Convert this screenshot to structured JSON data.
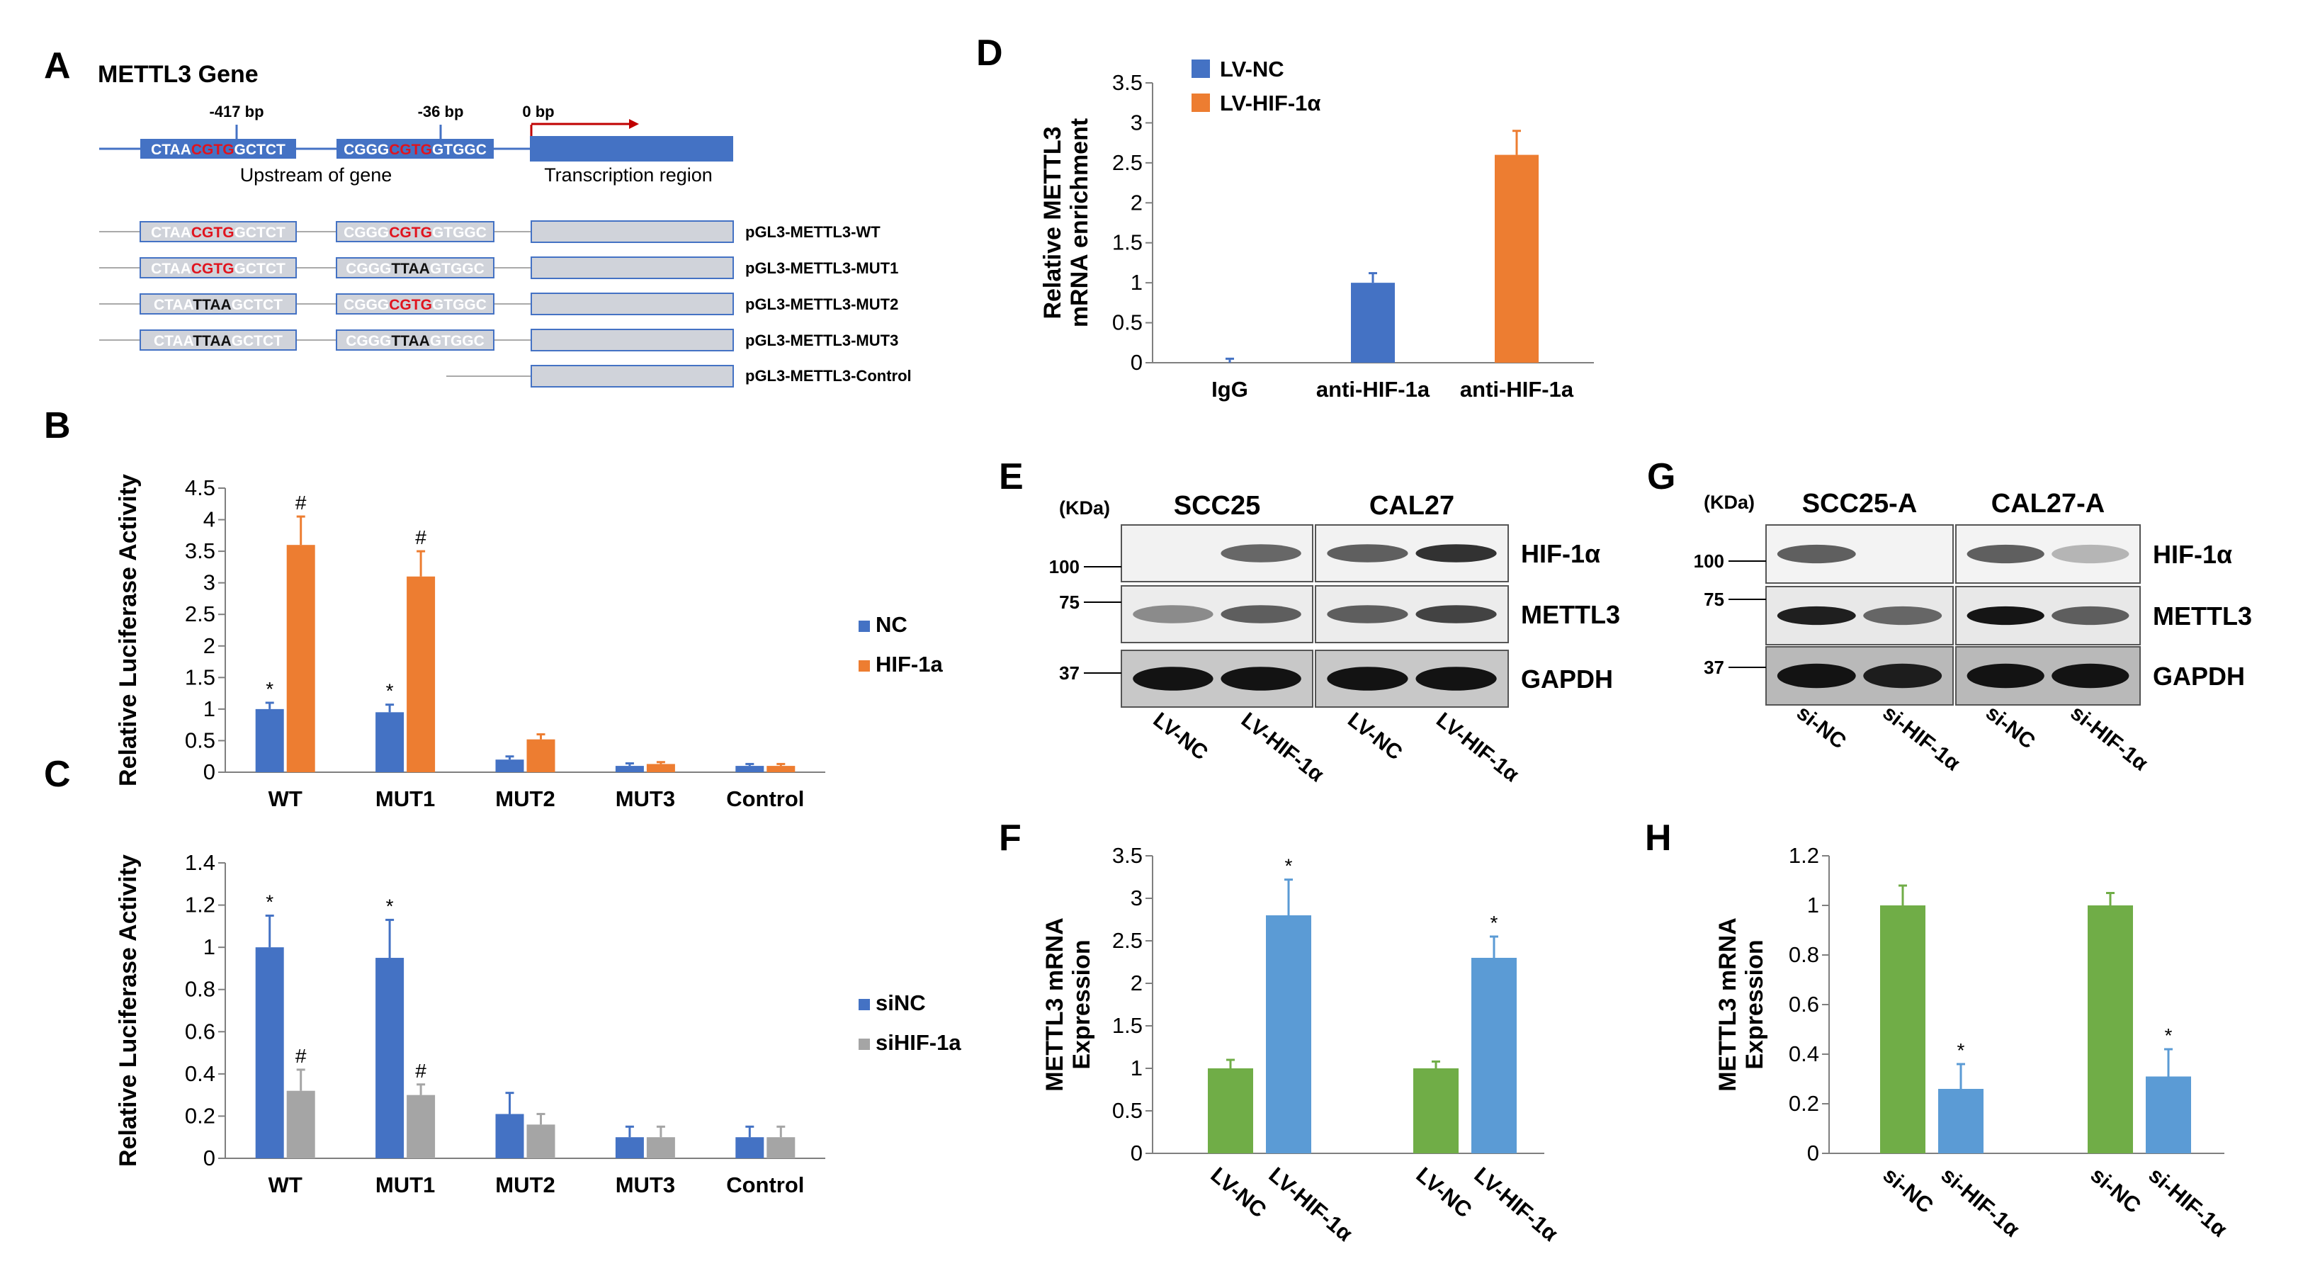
{
  "colors": {
    "blue": "#4472c4",
    "orange": "#ed7d31",
    "gray": "#a5a5a5",
    "green": "#70ad47",
    "lightblue": "#5b9bd5",
    "red": "#e0141e",
    "gene_box": "#4472c4",
    "construct_box": "#d0d3da"
  },
  "panelA": {
    "label": "A",
    "title": "METTL3 Gene",
    "bp_labels": [
      "-417 bp",
      "-36 bp",
      "0 bp"
    ],
    "site1": {
      "pre": "CTAA",
      "core": "CGTG",
      "post": "GCTCT"
    },
    "site2": {
      "pre": "CGGG",
      "core": "CGTG",
      "post": "GTGGC"
    },
    "upstream_label": "Upstream of gene",
    "transcription_label": "Transcription region",
    "constructs": [
      {
        "name": "pGL3-METTL3-WT",
        "s1": {
          "pre": "CTAA",
          "core": "CGTG",
          "post": "GCTCT",
          "mut": false
        },
        "s2": {
          "pre": "CGGG",
          "core": "CGTG",
          "post": "GTGGC",
          "mut": false
        }
      },
      {
        "name": "pGL3-METTL3-MUT1",
        "s1": {
          "pre": "CTAA",
          "core": "CGTG",
          "post": "GCTCT",
          "mut": false
        },
        "s2": {
          "pre": "CGGG",
          "core": "TTAA",
          "post": "GTGGC",
          "mut": true
        }
      },
      {
        "name": "pGL3-METTL3-MUT2",
        "s1": {
          "pre": "CTAA",
          "core": "TTAA",
          "post": "GCTCT",
          "mut": true
        },
        "s2": {
          "pre": "CGGG",
          "core": "CGTG",
          "post": "GTGGC",
          "mut": false
        }
      },
      {
        "name": "pGL3-METTL3-MUT3",
        "s1": {
          "pre": "CTAA",
          "core": "TTAA",
          "post": "GCTCT",
          "mut": true
        },
        "s2": {
          "pre": "CGGG",
          "core": "TTAA",
          "post": "GTGGC",
          "mut": true
        }
      }
    ],
    "control_name": "pGL3-METTL3-Control"
  },
  "chart_data": [
    {
      "id": "B",
      "type": "bar",
      "panel_label": "B",
      "categories": [
        "WT",
        "MUT1",
        "MUT2",
        "MUT3",
        "Control"
      ],
      "series": [
        {
          "name": "NC",
          "color": "#4472c4",
          "values": [
            1.0,
            0.95,
            0.2,
            0.1,
            0.1
          ],
          "errors": [
            0.1,
            0.12,
            0.05,
            0.04,
            0.03
          ],
          "marks": [
            "*",
            "*",
            "",
            "",
            ""
          ]
        },
        {
          "name": "HIF-1a",
          "color": "#ed7d31",
          "values": [
            3.6,
            3.1,
            0.52,
            0.13,
            0.1
          ],
          "errors": [
            0.45,
            0.4,
            0.08,
            0.03,
            0.03
          ],
          "marks": [
            "#",
            "#",
            "",
            "",
            ""
          ]
        }
      ],
      "ylabel": "Relative Luciferase Activity",
      "ylim": [
        0,
        4.5
      ],
      "yticks": [
        "0",
        "0.5",
        "1",
        "1.5",
        "2",
        "2.5",
        "3",
        "3.5",
        "4",
        "4.5"
      ],
      "legend": "right"
    },
    {
      "id": "C",
      "type": "bar",
      "panel_label": "C",
      "categories": [
        "WT",
        "MUT1",
        "MUT2",
        "MUT3",
        "Control"
      ],
      "series": [
        {
          "name": "siNC",
          "color": "#4472c4",
          "values": [
            1.0,
            0.95,
            0.21,
            0.1,
            0.1
          ],
          "errors": [
            0.15,
            0.18,
            0.1,
            0.05,
            0.05
          ],
          "marks": [
            "*",
            "*",
            "",
            "",
            ""
          ]
        },
        {
          "name": "siHIF-1a",
          "color": "#a5a5a5",
          "values": [
            0.32,
            0.3,
            0.16,
            0.1,
            0.1
          ],
          "errors": [
            0.1,
            0.05,
            0.05,
            0.05,
            0.05
          ],
          "marks": [
            "#",
            "#",
            "",
            "",
            ""
          ]
        }
      ],
      "ylabel": "Relative Luciferase Activity",
      "ylim": [
        0,
        1.4
      ],
      "yticks": [
        "0",
        "0.2",
        "0.4",
        "0.6",
        "0.8",
        "1",
        "1.2",
        "1.4"
      ],
      "legend": "right"
    },
    {
      "id": "D",
      "type": "bar",
      "panel_label": "D",
      "categories": [
        "IgG",
        "anti-HIF-1a",
        "anti-HIF-1a"
      ],
      "bars": [
        {
          "value": 0.0,
          "error": 0.05,
          "color": "#4472c4"
        },
        {
          "value": 1.0,
          "error": 0.12,
          "color": "#4472c4"
        },
        {
          "value": 2.6,
          "error": 0.3,
          "color": "#ed7d31"
        }
      ],
      "legend_entries": [
        {
          "name": "LV-NC",
          "color": "#4472c4"
        },
        {
          "name": "LV-HIF-1α",
          "color": "#ed7d31"
        }
      ],
      "ylabel_lines": [
        "Relative METTL3",
        "mRNA enrichment"
      ],
      "ylim": [
        0,
        3.5
      ],
      "yticks": [
        "0",
        "0.5",
        "1",
        "1.5",
        "2",
        "2.5",
        "3",
        "3.5"
      ],
      "legend": "top-left"
    },
    {
      "id": "F",
      "type": "bar",
      "panel_label": "F",
      "categories": [
        "LV-NC",
        "LV-HIF-1α",
        "LV-NC",
        "LV-HIF-1α"
      ],
      "bars": [
        {
          "value": 1.0,
          "error": 0.1,
          "color": "#70ad47",
          "mark": ""
        },
        {
          "value": 2.8,
          "error": 0.42,
          "color": "#5b9bd5",
          "mark": "*"
        },
        {
          "value": 1.0,
          "error": 0.08,
          "color": "#70ad47",
          "mark": ""
        },
        {
          "value": 2.3,
          "error": 0.25,
          "color": "#5b9bd5",
          "mark": "*"
        }
      ],
      "ylabel_lines": [
        "METTL3 mRNA",
        "Expression"
      ],
      "ylim": [
        0,
        3.5
      ],
      "yticks": [
        "0",
        "0.5",
        "1",
        "1.5",
        "2",
        "2.5",
        "3",
        "3.5"
      ]
    },
    {
      "id": "H",
      "type": "bar",
      "panel_label": "H",
      "categories": [
        "si-NC",
        "si-HIF-1α",
        "si-NC",
        "si-HIF-1α"
      ],
      "bars": [
        {
          "value": 1.0,
          "error": 0.08,
          "color": "#70ad47",
          "mark": ""
        },
        {
          "value": 0.26,
          "error": 0.1,
          "color": "#5b9bd5",
          "mark": "*"
        },
        {
          "value": 1.0,
          "error": 0.05,
          "color": "#70ad47",
          "mark": ""
        },
        {
          "value": 0.31,
          "error": 0.11,
          "color": "#5b9bd5",
          "mark": "*"
        }
      ],
      "ylabel_lines": [
        "METTL3 mRNA",
        "Expression"
      ],
      "ylim": [
        0,
        1.2
      ],
      "yticks": [
        "0",
        "0.2",
        "0.4",
        "0.6",
        "0.8",
        "1",
        "1.2"
      ]
    }
  ],
  "blots": [
    {
      "id": "E",
      "panel_label": "E",
      "kda": "(KDa)",
      "groups": [
        "SCC25",
        "CAL27"
      ],
      "markers": [
        "100",
        "75",
        "37"
      ],
      "rows": [
        {
          "name": "HIF-1α",
          "bg": "#f2f2f2",
          "intensities": [
            0.0,
            0.55,
            0.6,
            0.85
          ]
        },
        {
          "name": "METTL3",
          "bg": "#ececec",
          "intensities": [
            0.35,
            0.6,
            0.6,
            0.75
          ]
        },
        {
          "name": "GAPDH",
          "bg": "#c8c8c8",
          "intensities": [
            1.0,
            1.0,
            1.0,
            1.0
          ]
        }
      ],
      "lanes": [
        "LV-NC",
        "LV-HIF-1α",
        "LV-NC",
        "LV-HIF-1α"
      ]
    },
    {
      "id": "G",
      "panel_label": "G",
      "kda": "(KDa)",
      "groups": [
        "SCC25-A",
        "CAL27-A"
      ],
      "markers": [
        "100",
        "75",
        "37"
      ],
      "rows": [
        {
          "name": "HIF-1α",
          "bg": "#f3f3f3",
          "intensities": [
            0.6,
            0.0,
            0.6,
            0.12
          ]
        },
        {
          "name": "METTL3",
          "bg": "#e8e8e8",
          "intensities": [
            0.95,
            0.55,
            1.0,
            0.6
          ]
        },
        {
          "name": "GAPDH",
          "bg": "#b9b9b9",
          "intensities": [
            1.0,
            0.95,
            1.0,
            1.0
          ]
        }
      ],
      "lanes": [
        "si-NC",
        "si-HIF-1α",
        "si-NC",
        "si-HIF-1α"
      ]
    }
  ]
}
